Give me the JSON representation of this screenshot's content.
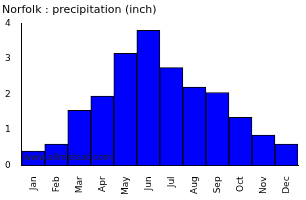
{
  "chart_data": {
    "type": "bar",
    "title": "Norfolk : precipitation (inch)",
    "categories": [
      "Jan",
      "Feb",
      "Mar",
      "Apr",
      "May",
      "Jun",
      "Jul",
      "Aug",
      "Sep",
      "Oct",
      "Nov",
      "Dec"
    ],
    "values": [
      0.4,
      0.6,
      1.55,
      1.95,
      3.15,
      3.8,
      2.75,
      2.2,
      2.05,
      1.35,
      0.85,
      0.6
    ],
    "color": "#0000ff",
    "ylim": [
      0,
      4
    ],
    "yticks": [
      0,
      1,
      2,
      3,
      4
    ],
    "grid": false,
    "annotations": [
      "www.allmetsat.com"
    ]
  }
}
